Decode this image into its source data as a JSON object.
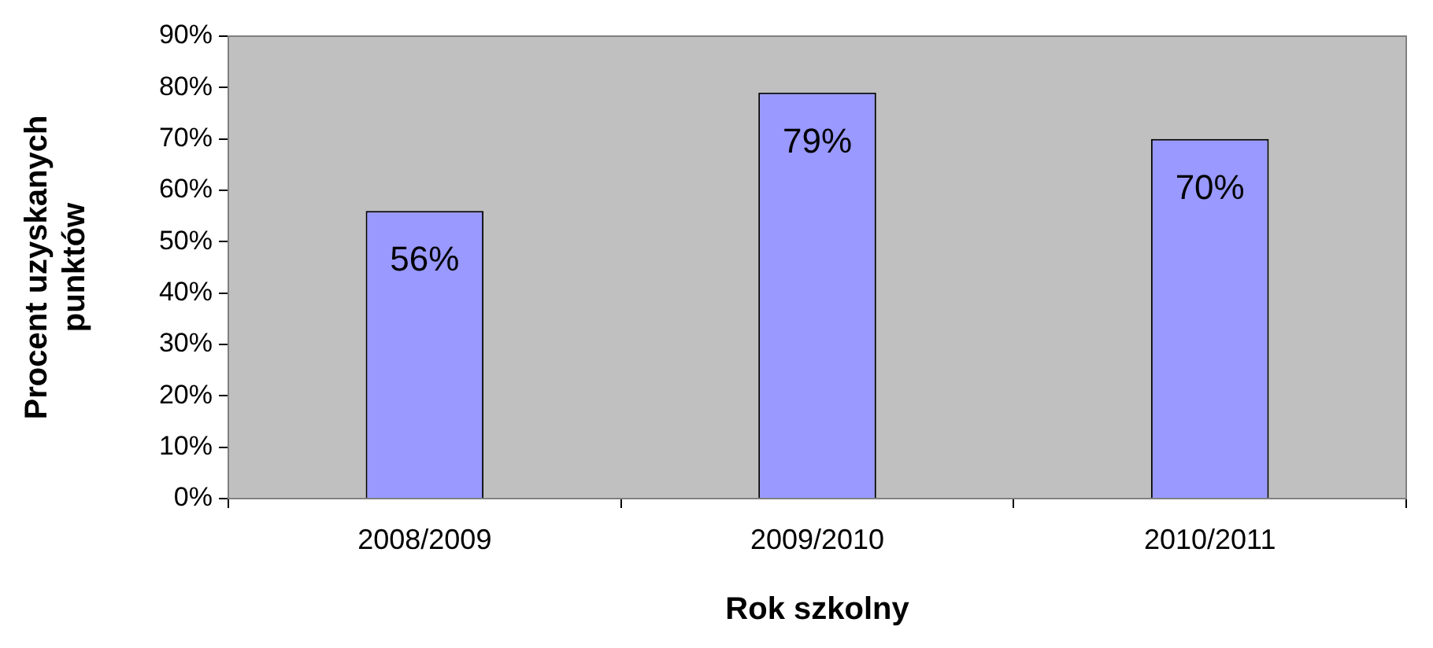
{
  "chart_data": {
    "type": "bar",
    "xlabel": "Rok szkolny",
    "ylabel": "Procent uzyskanych punktów",
    "categories": [
      "2008/2009",
      "2009/2010",
      "2010/2011"
    ],
    "values": [
      56,
      79,
      70
    ],
    "value_labels": [
      "56%",
      "79%",
      "70%"
    ],
    "color": "#9999ff",
    "ylim": [
      0,
      90
    ],
    "yticks": [
      {
        "value": 0,
        "label": "0%"
      },
      {
        "value": 10,
        "label": "10%"
      },
      {
        "value": 20,
        "label": "20%"
      },
      {
        "value": 30,
        "label": "30%"
      },
      {
        "value": 40,
        "label": "40%"
      },
      {
        "value": 50,
        "label": "50%"
      },
      {
        "value": 60,
        "label": "60%"
      },
      {
        "value": 70,
        "label": "70%"
      },
      {
        "value": 80,
        "label": "80%"
      },
      {
        "value": 90,
        "label": "90%"
      }
    ],
    "grid": false,
    "legend": false
  }
}
